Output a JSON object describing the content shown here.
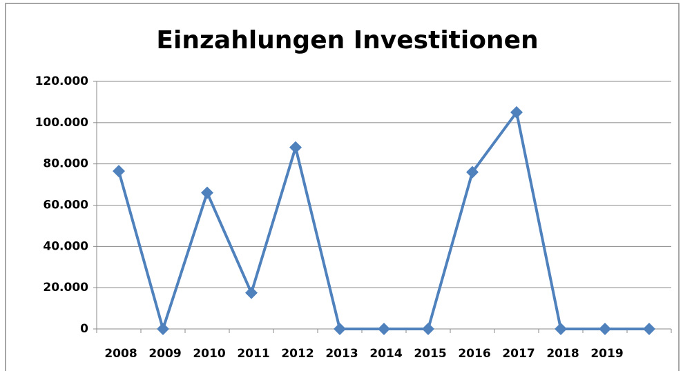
{
  "chart_data": {
    "type": "line",
    "title": "Einzahlungen Investitionen",
    "categories": [
      "2008",
      "2009",
      "2010",
      "2011",
      "2012",
      "2013",
      "2014",
      "2015",
      "2016",
      "2017",
      "2018",
      "2019",
      null
    ],
    "values": [
      76500,
      0,
      66000,
      17500,
      88000,
      0,
      0,
      0,
      76000,
      105000,
      0,
      0,
      0
    ],
    "color": "#4f81bd",
    "ylim": [
      0,
      120000
    ],
    "yticks": [
      0,
      {
        "value": 20000,
        "label": "20.000"
      },
      {
        "value": 40000,
        "label": "40.000"
      },
      {
        "value": 60000,
        "label": "60.000"
      },
      {
        "value": 80000,
        "label": "80.000"
      },
      {
        "value": 100000,
        "label": "100.000"
      },
      {
        "value": 120000,
        "label": "120.000"
      }
    ],
    "grid": true
  }
}
